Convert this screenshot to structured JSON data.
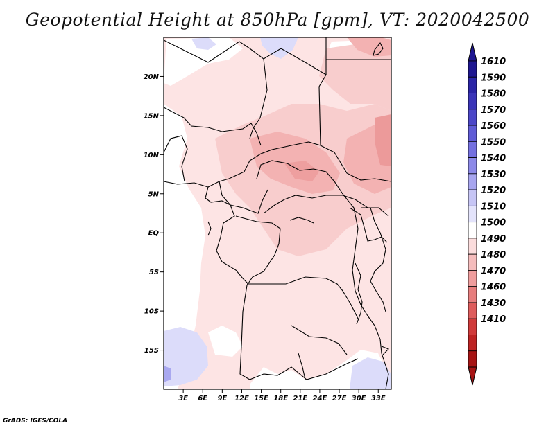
{
  "title": "Geopotential Height at 850hPa [gpm], VT: 2020042500",
  "credit": "GrADS: IGES/COLA",
  "map": {
    "lon_range": [
      0,
      35
    ],
    "lat_range": [
      -20,
      25
    ],
    "lat_ticks": [
      {
        "label": "20N",
        "lat": 20
      },
      {
        "label": "15N",
        "lat": 15
      },
      {
        "label": "10N",
        "lat": 10
      },
      {
        "label": "5N",
        "lat": 5
      },
      {
        "label": "EQ",
        "lat": 0
      },
      {
        "label": "5S",
        "lat": -5
      },
      {
        "label": "10S",
        "lat": -10
      },
      {
        "label": "15S",
        "lat": -15
      }
    ],
    "lon_ticks": [
      {
        "label": "3E",
        "lon": 3
      },
      {
        "label": "6E",
        "lon": 6
      },
      {
        "label": "9E",
        "lon": 9
      },
      {
        "label": "12E",
        "lon": 12
      },
      {
        "label": "15E",
        "lon": 15
      },
      {
        "label": "18E",
        "lon": 18
      },
      {
        "label": "21E",
        "lon": 21
      },
      {
        "label": "24E",
        "lon": 24
      },
      {
        "label": "27E",
        "lon": 27
      },
      {
        "label": "30E",
        "lon": 30
      },
      {
        "label": "33E",
        "lon": 33
      }
    ]
  },
  "colorbar": {
    "levels": [
      {
        "label": "1610",
        "color": "#1e1690"
      },
      {
        "label": "1590",
        "color": "#2a24a6"
      },
      {
        "label": "1580",
        "color": "#3a34b8"
      },
      {
        "label": "1570",
        "color": "#4b46c8"
      },
      {
        "label": "1560",
        "color": "#5f5bd6"
      },
      {
        "label": "1550",
        "color": "#7470e0"
      },
      {
        "label": "1540",
        "color": "#8c89e8"
      },
      {
        "label": "1530",
        "color": "#a7a5ef"
      },
      {
        "label": "1520",
        "color": "#c6c5f5"
      },
      {
        "label": "1510",
        "color": "#e3e3fb"
      },
      {
        "label": "1500",
        "color": "#ffffff"
      },
      {
        "label": "1490",
        "color": "#fbdcdc"
      },
      {
        "label": "1480",
        "color": "#f5bcbc"
      },
      {
        "label": "1470",
        "color": "#ef9d9d"
      },
      {
        "label": "1460",
        "color": "#e77d7d"
      },
      {
        "label": "1430",
        "color": "#de5c5c"
      },
      {
        "label": "1410",
        "color": "#d03a3a"
      },
      {
        "label": "",
        "color": "#bd2323"
      },
      {
        "label": "",
        "color": "#a61414"
      }
    ]
  }
}
